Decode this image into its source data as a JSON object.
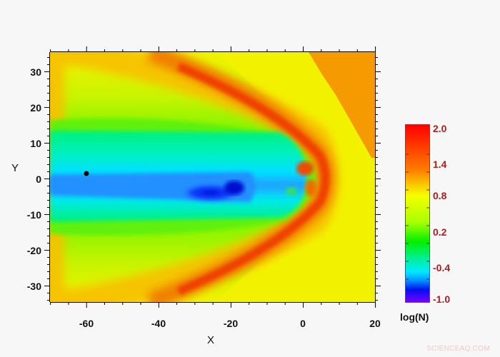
{
  "chart_data": {
    "type": "heatmap",
    "title": "",
    "xlabel": "X",
    "ylabel": "Y",
    "xlim": [
      -70,
      20
    ],
    "ylim": [
      -35,
      35
    ],
    "x_ticks": [
      -60,
      -40,
      -20,
      0,
      20
    ],
    "y_ticks": [
      30,
      20,
      10,
      0,
      -10,
      -20,
      -30
    ],
    "colorbar": {
      "label": "log(N)",
      "range": [
        -1.0,
        2.0
      ],
      "ticks": [
        "2.0",
        "1.4",
        "0.8",
        "0.2",
        "-0.4",
        "-1.0"
      ],
      "colors": [
        "#ff0000",
        "#ff7a00",
        "#f5ff00",
        "#00f000",
        "#00e8ff",
        "#0010f0",
        "#7a00ff"
      ]
    },
    "features": [
      {
        "name": "bow shock",
        "description": "parabolic red/orange arc with nose near X=8, Y=0, extending tailward past X=-40 at Y=±30"
      },
      {
        "name": "magnetotail plasma sheet",
        "description": "cyan/blue band between Y≈-10 and Y≈13 from X=-70 to X≈-2"
      },
      {
        "name": "low density core",
        "description": "dark blue region near X≈-25 to -20, Y≈-3"
      },
      {
        "name": "upstream region",
        "description": "orange triangular region top-right, X>2, Y>5"
      },
      {
        "name": "marker",
        "x": -60,
        "y": 1.5,
        "description": "black dot"
      }
    ]
  },
  "axes": {
    "x_title": "X",
    "y_title": "Y",
    "x_tick_labels": [
      "-60",
      "-40",
      "-20",
      "0",
      "20"
    ],
    "y_tick_labels": [
      "30",
      "20",
      "10",
      "0",
      "-10",
      "-20",
      "-30"
    ]
  },
  "colorbar": {
    "title": "log(N)",
    "labels": [
      "2.0",
      "1.4",
      "0.8",
      "0.2",
      "-0.4",
      "-1.0"
    ]
  },
  "watermark": "SCIENCEAQ.COM"
}
